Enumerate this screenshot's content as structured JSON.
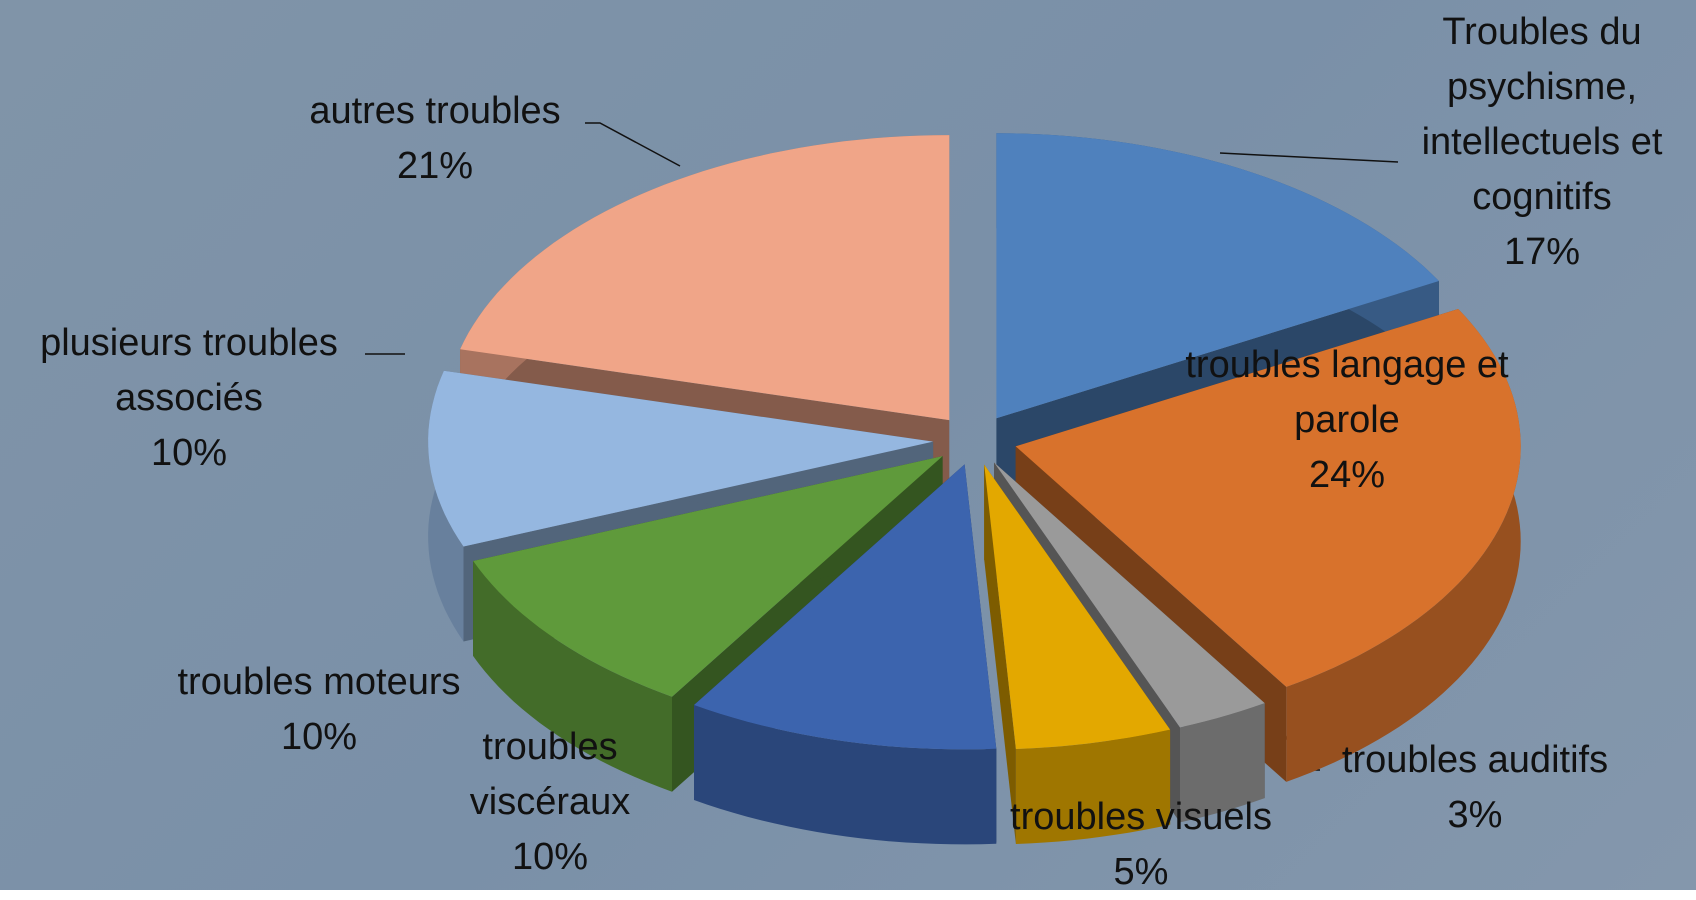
{
  "chart_data": {
    "type": "pie",
    "categories": [
      "Troubles du psychisme, intellectuels et cognitifs",
      "troubles langage et parole",
      "troubles auditifs",
      "troubles visuels",
      "troubles viscéraux",
      "troubles moteurs",
      "plusieurs troubles associés",
      "autres troubles"
    ],
    "values": [
      17,
      24,
      3,
      5,
      10,
      10,
      10,
      21
    ],
    "value_labels": [
      "17%",
      "24%",
      "3%",
      "5%",
      "10%",
      "10%",
      "10%",
      "21%"
    ],
    "colors": [
      "#4f81bd",
      "#d8722c",
      "#9a9a9a",
      "#e3a800",
      "#3c64ae",
      "#5f9a3b",
      "#95b7e0",
      "#f0a588"
    ]
  }
}
